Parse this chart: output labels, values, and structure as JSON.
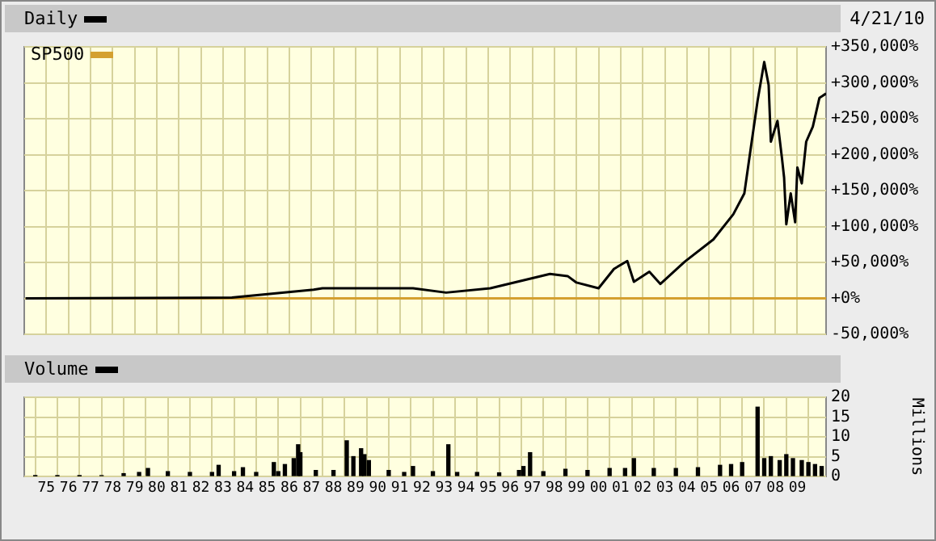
{
  "chart_data": [
    {
      "type": "line",
      "annotations": [
        "4/21/10"
      ],
      "legend": "top left",
      "grid": true,
      "tick_labels": "y",
      "xlim": [
        1974,
        2010.3
      ],
      "ylim": [
        -50000,
        350000
      ],
      "xticks": [
        {
          "value": 1975,
          "label": null
        },
        {
          "value": 1976,
          "label": null
        },
        {
          "value": 1977,
          "label": null
        },
        {
          "value": 1978,
          "label": null
        },
        {
          "value": 1979,
          "label": null
        },
        {
          "value": 1980,
          "label": null
        },
        {
          "value": 1981,
          "label": null
        },
        {
          "value": 1982,
          "label": null
        },
        {
          "value": 1983,
          "label": null
        },
        {
          "value": 1984,
          "label": null
        },
        {
          "value": 1985,
          "label": null
        },
        {
          "value": 1986,
          "label": null
        },
        {
          "value": 1987,
          "label": null
        },
        {
          "value": 1988,
          "label": null
        },
        {
          "value": 1989,
          "label": null
        },
        {
          "value": 1990,
          "label": null
        },
        {
          "value": 1991,
          "label": null
        },
        {
          "value": 1992,
          "label": null
        },
        {
          "value": 1993,
          "label": null
        },
        {
          "value": 1994,
          "label": null
        },
        {
          "value": 1995,
          "label": null
        },
        {
          "value": 1996,
          "label": null
        },
        {
          "value": 1997,
          "label": null
        },
        {
          "value": 1998,
          "label": null
        },
        {
          "value": 1999,
          "label": null
        },
        {
          "value": 2000,
          "label": null
        },
        {
          "value": 2001,
          "label": null
        },
        {
          "value": 2002,
          "label": null
        },
        {
          "value": 2003,
          "label": null
        },
        {
          "value": 2004,
          "label": null
        },
        {
          "value": 2005,
          "label": null
        },
        {
          "value": 2006,
          "label": null
        },
        {
          "value": 2007,
          "label": null
        },
        {
          "value": 2008,
          "label": null
        },
        {
          "value": 2009,
          "label": null
        }
      ],
      "yticks": [
        {
          "value": -50000,
          "label": "-50,000%"
        },
        {
          "value": 0,
          "label": "+0%"
        },
        {
          "value": 50000,
          "label": "+50,000%"
        },
        {
          "value": 100000,
          "label": "+100,000%"
        },
        {
          "value": 150000,
          "label": "+150,000%"
        },
        {
          "value": 200000,
          "label": "+200,000%"
        },
        {
          "value": 250000,
          "label": "+250,000%"
        },
        {
          "value": 300000,
          "label": "+300,000%"
        },
        {
          "value": 350000,
          "label": "+350,000%"
        }
      ],
      "series": [
        {
          "name": "Daily",
          "color": "#000000",
          "x": [
            1974.06,
            1983.4,
            1987.1,
            1987.5,
            1991.6,
            1993.1,
            1995.1,
            1997.8,
            1998.6,
            1999.0,
            2000.0,
            2000.7,
            2001.3,
            2001.6,
            2002.3,
            2002.8,
            2003.9,
            2005.2,
            2006.1,
            2006.6,
            2006.9,
            2007.2,
            2007.5,
            2007.7,
            2007.8,
            2008.1,
            2008.3,
            2008.4,
            2008.5,
            2008.7,
            2008.9,
            2009.0,
            2009.2,
            2009.4,
            2009.7,
            2010.0,
            2010.3
          ],
          "values": [
            0,
            1000,
            12000,
            14000,
            14000,
            8000,
            14000,
            34000,
            31000,
            22000,
            14000,
            41000,
            52000,
            23000,
            37000,
            20000,
            51000,
            82000,
            117000,
            146000,
            211000,
            275000,
            329000,
            297000,
            218000,
            247000,
            196000,
            168000,
            103000,
            146000,
            106000,
            182000,
            160000,
            218000,
            239000,
            279000,
            285000
          ]
        },
        {
          "name": "SP500",
          "color": "#d4a030",
          "x": [
            1974.06,
            1990,
            2010.3
          ],
          "values": [
            0,
            0,
            0
          ]
        }
      ]
    },
    {
      "type": "bar",
      "legend": "top left",
      "grid": true,
      "ylabel": "Millions",
      "xlim": [
        1974,
        2010.3
      ],
      "ylim": [
        0,
        20
      ],
      "yticks": [
        0,
        5,
        10,
        15,
        20
      ],
      "xticks": [
        {
          "value": 1975,
          "label": "75"
        },
        {
          "value": 1976,
          "label": "76"
        },
        {
          "value": 1977,
          "label": "77"
        },
        {
          "value": 1978,
          "label": "78"
        },
        {
          "value": 1979,
          "label": "79"
        },
        {
          "value": 1980,
          "label": "80"
        },
        {
          "value": 1981,
          "label": "81"
        },
        {
          "value": 1982,
          "label": "82"
        },
        {
          "value": 1983,
          "label": "83"
        },
        {
          "value": 1984,
          "label": "84"
        },
        {
          "value": 1985,
          "label": "85"
        },
        {
          "value": 1986,
          "label": "86"
        },
        {
          "value": 1987,
          "label": "87"
        },
        {
          "value": 1988,
          "label": "88"
        },
        {
          "value": 1989,
          "label": "89"
        },
        {
          "value": 1990,
          "label": "90"
        },
        {
          "value": 1991,
          "label": "91"
        },
        {
          "value": 1992,
          "label": "92"
        },
        {
          "value": 1993,
          "label": "93"
        },
        {
          "value": 1994,
          "label": "94"
        },
        {
          "value": 1995,
          "label": "95"
        },
        {
          "value": 1996,
          "label": "96"
        },
        {
          "value": 1997,
          "label": "97"
        },
        {
          "value": 1998,
          "label": "98"
        },
        {
          "value": 1999,
          "label": "99"
        },
        {
          "value": 2000,
          "label": "00"
        },
        {
          "value": 2001,
          "label": "01"
        },
        {
          "value": 2002,
          "label": "02"
        },
        {
          "value": 2003,
          "label": "03"
        },
        {
          "value": 2004,
          "label": "04"
        },
        {
          "value": 2005,
          "label": "05"
        },
        {
          "value": 2006,
          "label": "06"
        },
        {
          "value": 2007,
          "label": "07"
        },
        {
          "value": 2008,
          "label": "08"
        },
        {
          "value": 2009,
          "label": "09"
        }
      ],
      "series": [
        {
          "name": "Volume",
          "color": "#000000",
          "x": [
            1974.5,
            1975.5,
            1976.5,
            1977.5,
            1978.5,
            1979.2,
            1979.6,
            1980.5,
            1981.5,
            1982.5,
            1982.8,
            1983.5,
            1983.9,
            1984.5,
            1985.3,
            1985.5,
            1985.8,
            1986.2,
            1986.4,
            1986.5,
            1987.2,
            1988.0,
            1988.6,
            1988.9,
            1989.25,
            1989.4,
            1989.6,
            1990.5,
            1991.2,
            1991.6,
            1992.5,
            1993.2,
            1993.6,
            1994.5,
            1995.5,
            1996.4,
            1996.6,
            1996.9,
            1997.5,
            1998.5,
            1999.5,
            2000.5,
            2001.2,
            2001.6,
            2002.5,
            2003.5,
            2004.5,
            2005.5,
            2006.0,
            2006.5,
            2007.2,
            2007.5,
            2007.8,
            2008.2,
            2008.5,
            2008.8,
            2009.2,
            2009.5,
            2009.8,
            2010.1
          ],
          "values": [
            0.1,
            0.1,
            0.1,
            0.2,
            0.7,
            1.0,
            2.0,
            1.2,
            1.0,
            1.0,
            2.8,
            1.2,
            2.2,
            1.0,
            3.5,
            1.2,
            3.0,
            4.5,
            8.0,
            6.0,
            1.5,
            1.5,
            9.0,
            5.0,
            7.0,
            5.5,
            4.0,
            1.5,
            1.0,
            2.5,
            1.2,
            8.0,
            1.0,
            1.0,
            0.9,
            1.5,
            2.5,
            6.0,
            1.2,
            1.8,
            1.5,
            2.0,
            2.0,
            4.5,
            2.0,
            2.0,
            2.2,
            2.8,
            3.0,
            3.5,
            17.5,
            4.5,
            5.0,
            4.0,
            5.5,
            4.5,
            4.0,
            3.5,
            3.0,
            2.5
          ]
        }
      ]
    }
  ]
}
